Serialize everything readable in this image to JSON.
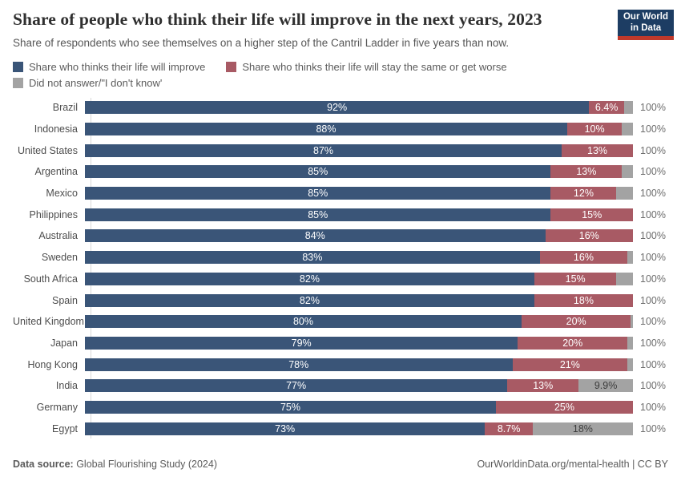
{
  "header": {
    "title": "Share of people who think their life will improve in the next years, 2023",
    "subtitle": "Share of respondents who see themselves on a higher step of the Cantril Ladder in five years than now.",
    "logo_line1": "Our World",
    "logo_line2": "in Data",
    "logo_bg": "#1d3d63",
    "logo_stripe": "#c0392b"
  },
  "legend": [
    {
      "name": "improve",
      "label": "Share who thinks their life will improve",
      "color": "#3a5578"
    },
    {
      "name": "same-or-worse",
      "label": "Share who thinks their life will stay the same or get worse",
      "color": "#a85a64"
    },
    {
      "name": "no-answer",
      "label": "Did not answer/\"I don't know'",
      "color": "#a3a3a3"
    }
  ],
  "chart_data": {
    "type": "bar",
    "stacked": true,
    "orientation": "horizontal",
    "unit": "%",
    "xlim": [
      0,
      100
    ],
    "grid": false,
    "legend_position": "top",
    "total_label": "100%",
    "categories": [
      "Brazil",
      "Indonesia",
      "United States",
      "Argentina",
      "Mexico",
      "Philippines",
      "Australia",
      "Sweden",
      "South Africa",
      "Spain",
      "United Kingdom",
      "Japan",
      "Hong Kong",
      "India",
      "Germany",
      "Egypt"
    ],
    "series": [
      {
        "name": "Share who thinks their life will improve",
        "color": "#3a5578",
        "values": [
          92,
          88,
          87,
          85,
          85,
          85,
          84,
          83,
          82,
          82,
          80,
          79,
          78,
          77,
          75,
          73
        ],
        "labels": [
          "92%",
          "88%",
          "87%",
          "85%",
          "85%",
          "85%",
          "84%",
          "83%",
          "82%",
          "82%",
          "80%",
          "79%",
          "78%",
          "77%",
          "75%",
          "73%"
        ]
      },
      {
        "name": "Share who thinks their life will stay the same or get worse",
        "color": "#a85a64",
        "values": [
          6.4,
          10,
          13,
          13,
          12,
          15,
          16,
          16,
          15,
          18,
          20,
          20,
          21,
          13,
          25,
          8.7
        ],
        "labels": [
          "6.4%",
          "10%",
          "13%",
          "13%",
          "12%",
          "15%",
          "16%",
          "16%",
          "15%",
          "18%",
          "20%",
          "20%",
          "21%",
          "13%",
          "25%",
          "8.7%"
        ]
      },
      {
        "name": "Did not answer/\"I don't know'",
        "color": "#a3a3a3",
        "values": [
          1.6,
          2,
          0,
          2,
          3,
          0,
          0,
          1,
          3,
          0,
          0.4,
          1,
          1,
          9.9,
          0,
          18.3
        ],
        "labels": [
          "",
          "",
          "",
          "",
          "",
          "",
          "",
          "",
          "",
          "",
          "",
          "",
          "",
          "9.9%",
          "",
          "18%"
        ]
      }
    ],
    "title": "Share of people who think their life will improve in the next years, 2023",
    "xlabel": "",
    "ylabel": ""
  },
  "footer": {
    "source_label": "Data source:",
    "source_value": " Global Flourishing Study (2024)",
    "credit": "OurWorldinData.org/mental-health | CC BY"
  }
}
